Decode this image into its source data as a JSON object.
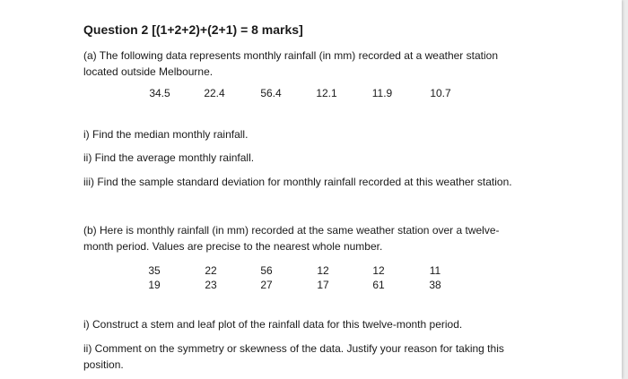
{
  "question": {
    "title": "Question 2   [(1+2+2)+(2+1) = 8 marks]"
  },
  "part_a": {
    "intro_line1": "(a) The following data represents monthly rainfall (in mm) recorded at a weather station",
    "intro_line2": "located outside Melbourne.",
    "values": [
      "34.5",
      "22.4",
      "56.4",
      "12.1",
      "11.9",
      "10.7"
    ],
    "q1": "i) Find the median monthly rainfall.",
    "q2": "ii) Find the average monthly rainfall.",
    "q3": "iii) Find the sample standard deviation for monthly rainfall recorded at this weather station."
  },
  "part_b": {
    "intro_line1": "(b) Here is monthly rainfall (in mm) recorded at the same weather station over a twelve-",
    "intro_line2": "month period. Values are precise to the nearest whole number.",
    "row1": [
      "35",
      "22",
      "56",
      "12",
      "12",
      "11"
    ],
    "row2": [
      "19",
      "23",
      "27",
      "17",
      "61",
      "38"
    ],
    "q1": "i) Construct a stem and leaf plot of the rainfall data for this twelve-month period.",
    "q2_line1": "ii) Comment on the symmetry or skewness of the data. Justify your reason for taking this",
    "q2_line2": "position."
  }
}
